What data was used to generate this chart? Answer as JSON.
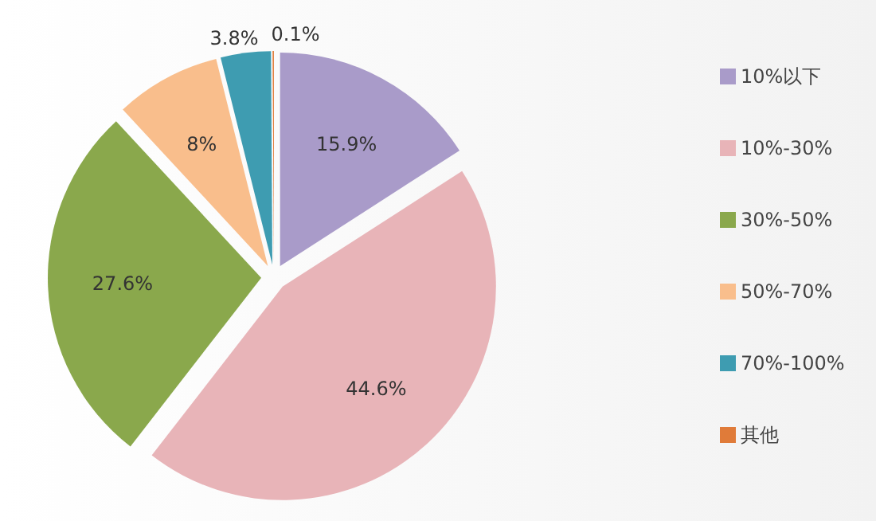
{
  "chart_data": {
    "type": "pie",
    "categories": [
      "10%以下",
      "10%-30%",
      "30%-50%",
      "50%-70%",
      "70%-100%",
      "其他"
    ],
    "values": [
      15.9,
      44.6,
      27.6,
      8,
      3.8,
      0.1
    ],
    "value_labels": [
      "15.9%",
      "44.6%",
      "27.6%",
      "8%",
      "3.8%",
      "0.1%"
    ],
    "colors": [
      "#a99bc9",
      "#e8b4b8",
      "#8aa84c",
      "#f9be8c",
      "#3e9cb1",
      "#e07b39"
    ],
    "legend": "right"
  }
}
